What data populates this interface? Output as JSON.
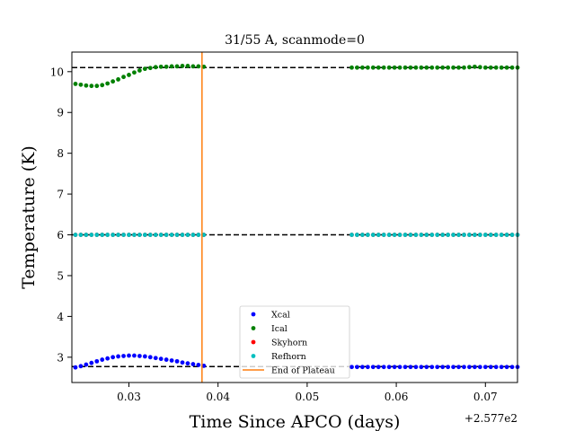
{
  "chart_data": {
    "type": "scatter",
    "title": "31/55 A, scanmode=0",
    "xlabel": "Time Since APCO (days)",
    "ylabel": "Temperature (K)",
    "x_offset_label": "+2.577e2",
    "xlim": [
      0.0236,
      0.0736
    ],
    "ylim": [
      2.38,
      10.48
    ],
    "xticks": [
      0.03,
      0.04,
      0.05,
      0.06,
      0.07
    ],
    "xtick_labels": [
      "0.03",
      "0.04",
      "0.05",
      "0.06",
      "0.07"
    ],
    "yticks": [
      3,
      4,
      5,
      6,
      7,
      8,
      9,
      10
    ],
    "ytick_labels": [
      "3",
      "4",
      "5",
      "6",
      "7",
      "8",
      "9",
      "10"
    ],
    "grid": false,
    "legend_position": "lower center",
    "hlines": [
      {
        "y": 10.1,
        "style": "dashed",
        "color": "#000000"
      },
      {
        "y": 6.0,
        "style": "dashed",
        "color": "#000000"
      },
      {
        "y": 2.77,
        "style": "dashed",
        "color": "#000000"
      }
    ],
    "vline": {
      "name": "End of Plateau",
      "x": 0.0382,
      "color": "#ff7f0e"
    },
    "series": [
      {
        "name": "Xcal",
        "color": "#0000ff",
        "points": [
          [
            0.024,
            2.75
          ],
          [
            0.0246,
            2.78
          ],
          [
            0.0252,
            2.82
          ],
          [
            0.0258,
            2.86
          ],
          [
            0.0264,
            2.9
          ],
          [
            0.027,
            2.94
          ],
          [
            0.0276,
            2.97
          ],
          [
            0.0282,
            3.0
          ],
          [
            0.0288,
            3.02
          ],
          [
            0.0294,
            3.03
          ],
          [
            0.03,
            3.04
          ],
          [
            0.0306,
            3.04
          ],
          [
            0.0312,
            3.03
          ],
          [
            0.0318,
            3.02
          ],
          [
            0.0324,
            3.0
          ],
          [
            0.033,
            2.98
          ],
          [
            0.0336,
            2.96
          ],
          [
            0.0342,
            2.94
          ],
          [
            0.0348,
            2.92
          ],
          [
            0.0354,
            2.9
          ],
          [
            0.036,
            2.87
          ],
          [
            0.0366,
            2.85
          ],
          [
            0.0372,
            2.83
          ],
          [
            0.0378,
            2.81
          ],
          [
            0.0384,
            2.79
          ],
          [
            0.055,
            2.76
          ],
          [
            0.0556,
            2.76
          ],
          [
            0.0562,
            2.76
          ],
          [
            0.0568,
            2.76
          ],
          [
            0.0574,
            2.76
          ],
          [
            0.058,
            2.76
          ],
          [
            0.0586,
            2.76
          ],
          [
            0.0592,
            2.76
          ],
          [
            0.0598,
            2.76
          ],
          [
            0.0604,
            2.76
          ],
          [
            0.061,
            2.76
          ],
          [
            0.0616,
            2.76
          ],
          [
            0.0622,
            2.76
          ],
          [
            0.0628,
            2.76
          ],
          [
            0.0634,
            2.76
          ],
          [
            0.064,
            2.76
          ],
          [
            0.0646,
            2.76
          ],
          [
            0.0652,
            2.76
          ],
          [
            0.0658,
            2.76
          ],
          [
            0.0664,
            2.76
          ],
          [
            0.067,
            2.76
          ],
          [
            0.0676,
            2.76
          ],
          [
            0.0682,
            2.76
          ],
          [
            0.0688,
            2.76
          ],
          [
            0.0694,
            2.76
          ],
          [
            0.07,
            2.76
          ],
          [
            0.0706,
            2.76
          ],
          [
            0.0712,
            2.76
          ],
          [
            0.0718,
            2.76
          ],
          [
            0.0724,
            2.76
          ],
          [
            0.073,
            2.76
          ],
          [
            0.0736,
            2.76
          ]
        ]
      },
      {
        "name": "Ical",
        "color": "#008000",
        "points": [
          [
            0.024,
            9.7
          ],
          [
            0.0246,
            9.68
          ],
          [
            0.0252,
            9.66
          ],
          [
            0.0258,
            9.65
          ],
          [
            0.0264,
            9.65
          ],
          [
            0.027,
            9.67
          ],
          [
            0.0276,
            9.71
          ],
          [
            0.0282,
            9.76
          ],
          [
            0.0288,
            9.81
          ],
          [
            0.0294,
            9.87
          ],
          [
            0.03,
            9.92
          ],
          [
            0.0306,
            9.98
          ],
          [
            0.0312,
            10.03
          ],
          [
            0.0318,
            10.07
          ],
          [
            0.0324,
            10.09
          ],
          [
            0.033,
            10.11
          ],
          [
            0.0336,
            10.12
          ],
          [
            0.0342,
            10.12
          ],
          [
            0.0348,
            10.13
          ],
          [
            0.0354,
            10.13
          ],
          [
            0.036,
            10.14
          ],
          [
            0.0366,
            10.14
          ],
          [
            0.0372,
            10.13
          ],
          [
            0.0378,
            10.13
          ],
          [
            0.0384,
            10.12
          ],
          [
            0.055,
            10.1
          ],
          [
            0.0556,
            10.1
          ],
          [
            0.0562,
            10.1
          ],
          [
            0.0568,
            10.1
          ],
          [
            0.0574,
            10.1
          ],
          [
            0.058,
            10.1
          ],
          [
            0.0586,
            10.1
          ],
          [
            0.0592,
            10.1
          ],
          [
            0.0598,
            10.1
          ],
          [
            0.0604,
            10.1
          ],
          [
            0.061,
            10.1
          ],
          [
            0.0616,
            10.1
          ],
          [
            0.0622,
            10.1
          ],
          [
            0.0628,
            10.1
          ],
          [
            0.0634,
            10.1
          ],
          [
            0.064,
            10.1
          ],
          [
            0.0646,
            10.1
          ],
          [
            0.0652,
            10.1
          ],
          [
            0.0658,
            10.1
          ],
          [
            0.0664,
            10.1
          ],
          [
            0.067,
            10.1
          ],
          [
            0.0676,
            10.1
          ],
          [
            0.0682,
            10.11
          ],
          [
            0.0688,
            10.12
          ],
          [
            0.0694,
            10.11
          ],
          [
            0.07,
            10.1
          ],
          [
            0.0706,
            10.1
          ],
          [
            0.0712,
            10.1
          ],
          [
            0.0718,
            10.1
          ],
          [
            0.0724,
            10.1
          ],
          [
            0.073,
            10.1
          ],
          [
            0.0736,
            10.1
          ]
        ]
      },
      {
        "name": "Skyhorn",
        "color": "#ff0000",
        "points": [
          [
            0.024,
            6.0
          ],
          [
            0.0246,
            6.0
          ],
          [
            0.0252,
            6.0
          ],
          [
            0.0258,
            6.0
          ],
          [
            0.0264,
            6.0
          ],
          [
            0.027,
            6.0
          ],
          [
            0.0276,
            6.0
          ],
          [
            0.0282,
            6.0
          ],
          [
            0.0288,
            6.0
          ],
          [
            0.0294,
            6.0
          ],
          [
            0.03,
            6.0
          ],
          [
            0.0306,
            6.0
          ],
          [
            0.0312,
            6.0
          ],
          [
            0.0318,
            6.0
          ],
          [
            0.0324,
            6.0
          ],
          [
            0.033,
            6.0
          ],
          [
            0.0336,
            6.0
          ],
          [
            0.0342,
            6.0
          ],
          [
            0.0348,
            6.0
          ],
          [
            0.0354,
            6.0
          ],
          [
            0.036,
            6.0
          ],
          [
            0.0366,
            6.0
          ],
          [
            0.0372,
            6.0
          ],
          [
            0.0378,
            6.0
          ],
          [
            0.0384,
            6.0
          ],
          [
            0.055,
            6.0
          ],
          [
            0.0556,
            6.0
          ],
          [
            0.0562,
            6.0
          ],
          [
            0.0568,
            6.0
          ],
          [
            0.0574,
            6.0
          ],
          [
            0.058,
            6.0
          ],
          [
            0.0586,
            6.0
          ],
          [
            0.0592,
            6.0
          ],
          [
            0.0598,
            6.0
          ],
          [
            0.0604,
            6.0
          ],
          [
            0.061,
            6.0
          ],
          [
            0.0616,
            6.0
          ],
          [
            0.0622,
            6.0
          ],
          [
            0.0628,
            6.0
          ],
          [
            0.0634,
            6.0
          ],
          [
            0.064,
            6.0
          ],
          [
            0.0646,
            6.0
          ],
          [
            0.0652,
            6.0
          ],
          [
            0.0658,
            6.0
          ],
          [
            0.0664,
            6.0
          ],
          [
            0.067,
            6.0
          ],
          [
            0.0676,
            6.0
          ],
          [
            0.0682,
            6.0
          ],
          [
            0.0688,
            6.0
          ],
          [
            0.0694,
            6.0
          ],
          [
            0.07,
            6.0
          ],
          [
            0.0706,
            6.0
          ],
          [
            0.0712,
            6.0
          ],
          [
            0.0718,
            6.0
          ],
          [
            0.0724,
            6.0
          ],
          [
            0.073,
            6.0
          ],
          [
            0.0736,
            6.0
          ]
        ]
      },
      {
        "name": "Refhorn",
        "color": "#00bfbf",
        "points": [
          [
            0.024,
            6.0
          ],
          [
            0.0246,
            6.0
          ],
          [
            0.0252,
            6.0
          ],
          [
            0.0258,
            6.0
          ],
          [
            0.0264,
            6.0
          ],
          [
            0.027,
            6.0
          ],
          [
            0.0276,
            6.0
          ],
          [
            0.0282,
            6.0
          ],
          [
            0.0288,
            6.0
          ],
          [
            0.0294,
            6.0
          ],
          [
            0.03,
            6.0
          ],
          [
            0.0306,
            6.0
          ],
          [
            0.0312,
            6.0
          ],
          [
            0.0318,
            6.0
          ],
          [
            0.0324,
            6.0
          ],
          [
            0.033,
            6.0
          ],
          [
            0.0336,
            6.0
          ],
          [
            0.0342,
            6.0
          ],
          [
            0.0348,
            6.0
          ],
          [
            0.0354,
            6.0
          ],
          [
            0.036,
            6.0
          ],
          [
            0.0366,
            6.0
          ],
          [
            0.0372,
            6.0
          ],
          [
            0.0378,
            6.0
          ],
          [
            0.0384,
            6.0
          ],
          [
            0.055,
            6.0
          ],
          [
            0.0556,
            6.0
          ],
          [
            0.0562,
            6.0
          ],
          [
            0.0568,
            6.0
          ],
          [
            0.0574,
            6.0
          ],
          [
            0.058,
            6.0
          ],
          [
            0.0586,
            6.0
          ],
          [
            0.0592,
            6.0
          ],
          [
            0.0598,
            6.0
          ],
          [
            0.0604,
            6.0
          ],
          [
            0.061,
            6.0
          ],
          [
            0.0616,
            6.0
          ],
          [
            0.0622,
            6.0
          ],
          [
            0.0628,
            6.0
          ],
          [
            0.0634,
            6.0
          ],
          [
            0.064,
            6.0
          ],
          [
            0.0646,
            6.0
          ],
          [
            0.0652,
            6.0
          ],
          [
            0.0658,
            6.0
          ],
          [
            0.0664,
            6.0
          ],
          [
            0.067,
            6.0
          ],
          [
            0.0676,
            6.0
          ],
          [
            0.0682,
            6.0
          ],
          [
            0.0688,
            6.0
          ],
          [
            0.0694,
            6.0
          ],
          [
            0.07,
            6.0
          ],
          [
            0.0706,
            6.0
          ],
          [
            0.0712,
            6.0
          ],
          [
            0.0718,
            6.0
          ],
          [
            0.0724,
            6.0
          ],
          [
            0.073,
            6.0
          ],
          [
            0.0736,
            6.0
          ]
        ]
      }
    ]
  }
}
